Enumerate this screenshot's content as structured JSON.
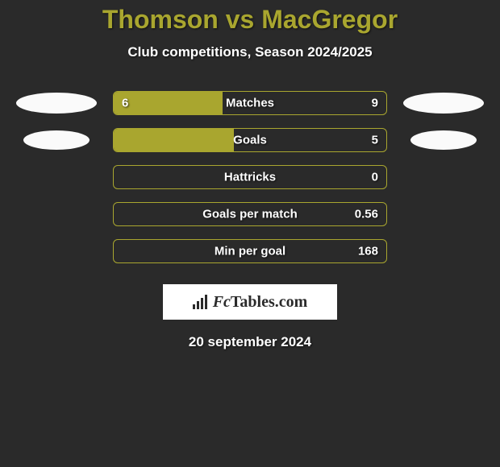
{
  "title": "Thomson vs MacGregor",
  "subtitle": "Club competitions, Season 2024/2025",
  "date": "20 september 2024",
  "logo": {
    "text_a": "Fc",
    "text_b": "Tables.com"
  },
  "colors": {
    "bar_fill": "#a9a62f",
    "bar_border": "#a9a62f",
    "title_color": "#a9a62f",
    "background": "#2a2a2a",
    "text": "#ffffff",
    "badge": "#fafafa",
    "logo_bg": "#ffffff",
    "logo_fg": "#2a2a2a"
  },
  "stats": [
    {
      "label": "Matches",
      "left_value": "6",
      "right_value": "9",
      "left_pct": 40,
      "right_pct": 0,
      "show_left_badge": true,
      "show_right_badge": true,
      "badge_small": false
    },
    {
      "label": "Goals",
      "left_value": "",
      "right_value": "5",
      "left_pct": 44,
      "right_pct": 0,
      "show_left_badge": true,
      "show_right_badge": true,
      "badge_small": true
    },
    {
      "label": "Hattricks",
      "left_value": "",
      "right_value": "0",
      "left_pct": 0,
      "right_pct": 0,
      "show_left_badge": false,
      "show_right_badge": false,
      "badge_small": false
    },
    {
      "label": "Goals per match",
      "left_value": "",
      "right_value": "0.56",
      "left_pct": 0,
      "right_pct": 0,
      "show_left_badge": false,
      "show_right_badge": false,
      "badge_small": false
    },
    {
      "label": "Min per goal",
      "left_value": "",
      "right_value": "168",
      "left_pct": 0,
      "right_pct": 0,
      "show_left_badge": false,
      "show_right_badge": false,
      "badge_small": false
    }
  ]
}
